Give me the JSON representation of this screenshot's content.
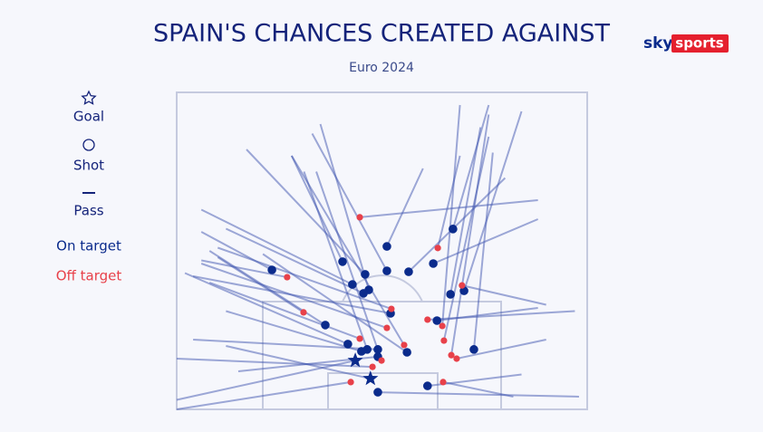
{
  "brand": {
    "sky": "sky",
    "sports": "sports"
  },
  "chart_data": {
    "type": "shotmap",
    "title": "SPAIN'S CHANCES CREATED AGAINST",
    "subtitle": "Euro 2024",
    "xlim": [
      0,
      100
    ],
    "ylim": [
      0,
      100
    ],
    "legend_items": [
      "Shot",
      "Pass"
    ],
    "pass_color": "#3f55b0",
    "series": [
      {
        "name": "Goal",
        "marker": "star",
        "color": "#0b2b8c",
        "x": [
          43.5,
          47.2
        ],
        "y": [
          84.6,
          90.3
        ],
        "pass_x": [
          0,
          12
        ],
        "pass_y": [
          97,
          80
        ]
      },
      {
        "name": "On target",
        "marker": "circle",
        "color": "#0b2b8c",
        "x": [
          23.2,
          40.4,
          51.2,
          45.9,
          42.8,
          46.8,
          45.5,
          51.2,
          56.5,
          62.5,
          67.3,
          66.7,
          70.0,
          52.1,
          63.4,
          36.2,
          41.7,
          45.0,
          46.4,
          49.0,
          49.0,
          56.1,
          72.4,
          61.1,
          49.0
        ],
        "y": [
          56.0,
          53.4,
          48.6,
          57.4,
          60.6,
          62.3,
          63.4,
          56.3,
          56.6,
          54.0,
          43.1,
          63.7,
          62.6,
          69.7,
          72.0,
          73.4,
          79.4,
          81.7,
          81.1,
          81.1,
          83.4,
          82.0,
          81.1,
          92.6,
          94.6
        ],
        "pass_x": [
          6,
          28,
          60,
          17,
          6,
          35,
          12,
          33,
          80,
          88,
          76,
          74,
          84,
          4,
          88,
          8,
          2,
          12,
          31,
          4,
          15,
          21,
          77,
          84,
          98
        ],
        "pass_y": [
          44,
          20,
          24,
          18,
          37,
          10,
          43,
          13,
          27,
          40,
          4,
          11,
          6,
          58,
          68,
          50,
          57,
          69,
          25,
          78,
          88,
          51,
          19,
          89,
          96
        ]
      },
      {
        "name": "Off target",
        "marker": "circle",
        "color": "#e8414a",
        "x": [
          44.6,
          63.6,
          26.9,
          69.5,
          30.9,
          52.3,
          61.1,
          64.7,
          51.2,
          44.6,
          55.4,
          65.1,
          66.9,
          68.2,
          47.7,
          49.9,
          42.4,
          64.9
        ],
        "y": [
          39.4,
          49.1,
          58.3,
          60.9,
          69.4,
          68.3,
          71.7,
          73.7,
          74.3,
          77.7,
          79.7,
          78.3,
          82.9,
          84.0,
          86.6,
          84.6,
          91.4,
          91.4
        ],
        "pass_x": [
          88,
          69,
          6,
          90,
          10,
          10,
          97,
          69,
          6,
          8,
          28,
          76,
          76,
          90,
          0,
          34,
          0,
          82
        ],
        "pass_y": [
          34,
          20,
          53,
          67,
          52,
          49,
          69,
          4,
          54,
          60,
          20,
          14,
          7,
          78,
          84,
          25,
          100,
          96
        ]
      }
    ]
  }
}
